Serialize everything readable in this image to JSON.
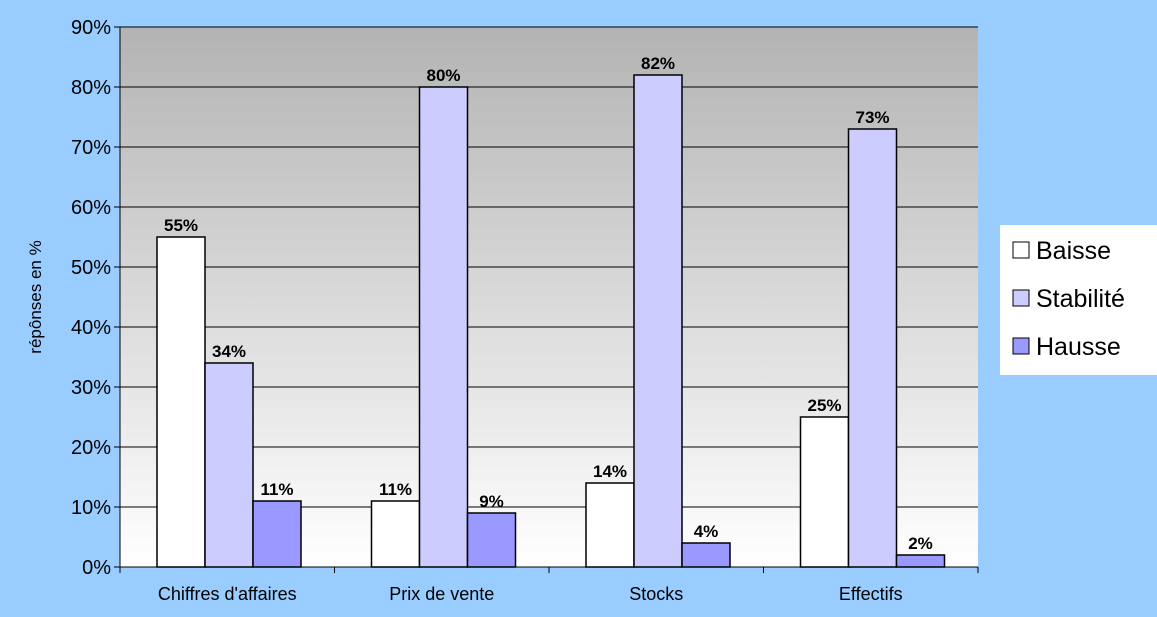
{
  "chart_data": {
    "type": "bar",
    "categories": [
      "Chiffres d'affaires",
      "Prix de vente",
      "Stocks",
      "Effectifs"
    ],
    "series": [
      {
        "name": "Baisse",
        "values": [
          55,
          11,
          14,
          25
        ],
        "color": "#ffffff"
      },
      {
        "name": "Stabilité",
        "values": [
          34,
          80,
          82,
          73
        ],
        "color": "#ccccff"
      },
      {
        "name": "Hausse",
        "values": [
          11,
          9,
          4,
          2
        ],
        "color": "#9999ff"
      }
    ],
    "value_labels": {
      "Baisse": [
        "55%",
        "11%",
        "14%",
        "25%"
      ],
      "Stabilité": [
        "34%",
        "80%",
        "82%",
        "73%"
      ],
      "Hausse": [
        "11%",
        "9%",
        "4%",
        "2%"
      ]
    },
    "title": "",
    "xlabel": "",
    "ylabel": "répônses en %",
    "ylim": [
      0,
      90
    ],
    "y_ticks": [
      0,
      10,
      20,
      30,
      40,
      50,
      60,
      70,
      80,
      90
    ],
    "y_tick_labels": [
      "0%",
      "10%",
      "20%",
      "30%",
      "40%",
      "50%",
      "60%",
      "70%",
      "80%",
      "90%"
    ],
    "grid": true,
    "legend": "right",
    "colors": {
      "background": "#99ccff",
      "plot_gradient_top": "#b3b3b3",
      "plot_gradient_bottom": "#ffffff",
      "gridline": "#000000",
      "bar_stroke": "#000000"
    }
  }
}
